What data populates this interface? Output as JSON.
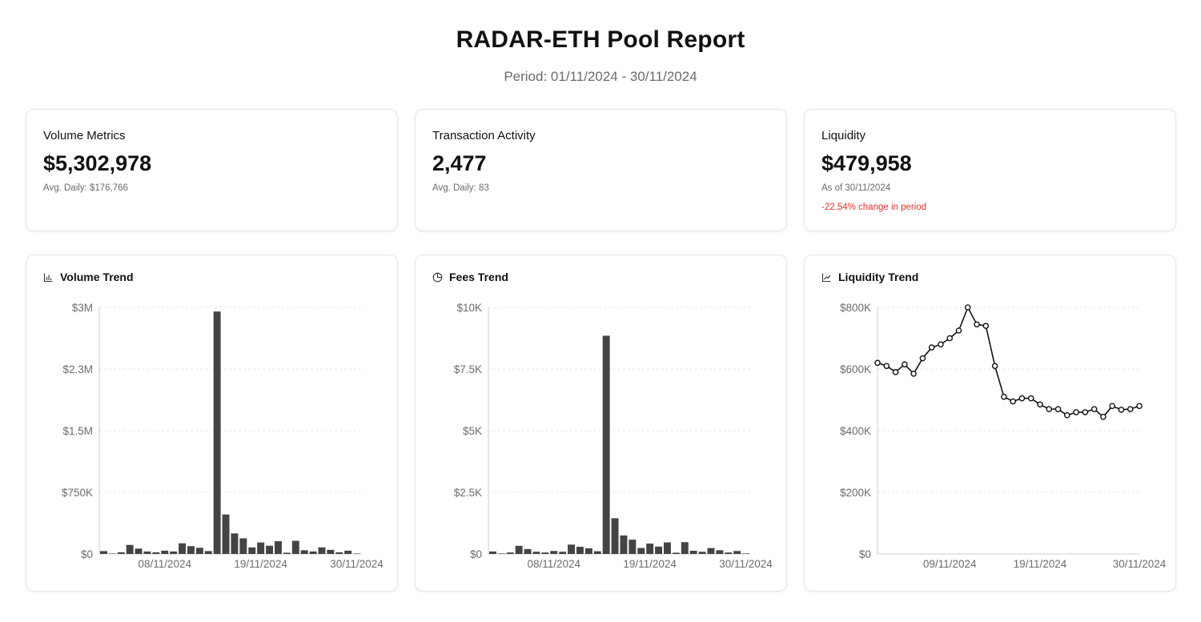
{
  "report": {
    "title": "RADAR-ETH Pool Report",
    "period": "Period: 01/11/2024 - 30/11/2024"
  },
  "metrics": [
    {
      "label": "Volume Metrics",
      "value": "$5,302,978",
      "sub": "Avg. Daily: $176,766"
    },
    {
      "label": "Transaction Activity",
      "value": "2,477",
      "sub": "Avg. Daily: 83"
    },
    {
      "label": "Liquidity",
      "value": "$479,958",
      "sub": "As of 30/11/2024",
      "change": "-22.54% change in period"
    }
  ],
  "colors": {
    "bar": "#444444",
    "line": "#111111",
    "grid": "#e3e3e3",
    "negative": "#e5322d"
  },
  "chart_data": [
    {
      "type": "bar",
      "title": "Volume Trend",
      "icon": "bar-chart-icon",
      "x": [
        "01/11/2024",
        "02/11/2024",
        "03/11/2024",
        "04/11/2024",
        "05/11/2024",
        "06/11/2024",
        "07/11/2024",
        "08/11/2024",
        "09/11/2024",
        "10/11/2024",
        "11/11/2024",
        "12/11/2024",
        "13/11/2024",
        "14/11/2024",
        "15/11/2024",
        "16/11/2024",
        "17/11/2024",
        "18/11/2024",
        "19/11/2024",
        "20/11/2024",
        "21/11/2024",
        "22/11/2024",
        "23/11/2024",
        "24/11/2024",
        "25/11/2024",
        "26/11/2024",
        "27/11/2024",
        "28/11/2024",
        "29/11/2024",
        "30/11/2024"
      ],
      "values": [
        35000,
        5000,
        20000,
        110000,
        65000,
        30000,
        20000,
        40000,
        30000,
        130000,
        95000,
        75000,
        35000,
        2950000,
        480000,
        250000,
        190000,
        80000,
        140000,
        100000,
        155000,
        15000,
        160000,
        45000,
        30000,
        80000,
        50000,
        20000,
        40000,
        5000
      ],
      "xticks": [
        "08/11/2024",
        "19/11/2024",
        "30/11/2024"
      ],
      "yticks": [
        "$0",
        "$750K",
        "$1.5M",
        "$2.3M",
        "$3M"
      ],
      "ylim": [
        0,
        3000000
      ]
    },
    {
      "type": "bar",
      "title": "Fees Trend",
      "icon": "pie-clock-icon",
      "x": [
        "01/11/2024",
        "02/11/2024",
        "03/11/2024",
        "04/11/2024",
        "05/11/2024",
        "06/11/2024",
        "07/11/2024",
        "08/11/2024",
        "09/11/2024",
        "10/11/2024",
        "11/11/2024",
        "12/11/2024",
        "13/11/2024",
        "14/11/2024",
        "15/11/2024",
        "16/11/2024",
        "17/11/2024",
        "18/11/2024",
        "19/11/2024",
        "20/11/2024",
        "21/11/2024",
        "22/11/2024",
        "23/11/2024",
        "24/11/2024",
        "25/11/2024",
        "26/11/2024",
        "27/11/2024",
        "28/11/2024",
        "29/11/2024",
        "30/11/2024"
      ],
      "values": [
        100,
        20,
        60,
        330,
        200,
        90,
        60,
        120,
        90,
        380,
        290,
        230,
        110,
        8850,
        1450,
        750,
        580,
        240,
        420,
        300,
        470,
        50,
        480,
        130,
        90,
        240,
        150,
        60,
        120,
        20
      ],
      "xticks": [
        "08/11/2024",
        "19/11/2024",
        "30/11/2024"
      ],
      "yticks": [
        "$0",
        "$2.5K",
        "$5K",
        "$7.5K",
        "$10K"
      ],
      "ylim": [
        0,
        10000
      ]
    },
    {
      "type": "line",
      "title": "Liquidity Trend",
      "icon": "line-chart-icon",
      "x": [
        "01/11/2024",
        "02/11/2024",
        "03/11/2024",
        "04/11/2024",
        "05/11/2024",
        "06/11/2024",
        "07/11/2024",
        "08/11/2024",
        "09/11/2024",
        "10/11/2024",
        "11/11/2024",
        "12/11/2024",
        "13/11/2024",
        "14/11/2024",
        "15/11/2024",
        "16/11/2024",
        "17/11/2024",
        "18/11/2024",
        "19/11/2024",
        "20/11/2024",
        "21/11/2024",
        "22/11/2024",
        "23/11/2024",
        "24/11/2024",
        "25/11/2024",
        "26/11/2024",
        "27/11/2024",
        "28/11/2024",
        "29/11/2024",
        "30/11/2024"
      ],
      "values": [
        620000,
        610000,
        590000,
        615000,
        585000,
        635000,
        670000,
        680000,
        700000,
        725000,
        800000,
        745000,
        740000,
        610000,
        510000,
        495000,
        505000,
        505000,
        485000,
        470000,
        470000,
        450000,
        460000,
        460000,
        470000,
        445000,
        480000,
        468000,
        470000,
        480000
      ],
      "xticks": [
        "09/11/2024",
        "19/11/2024",
        "30/11/2024"
      ],
      "yticks": [
        "$0",
        "$200K",
        "$400K",
        "$600K",
        "$800K"
      ],
      "ylim": [
        0,
        800000
      ]
    }
  ]
}
